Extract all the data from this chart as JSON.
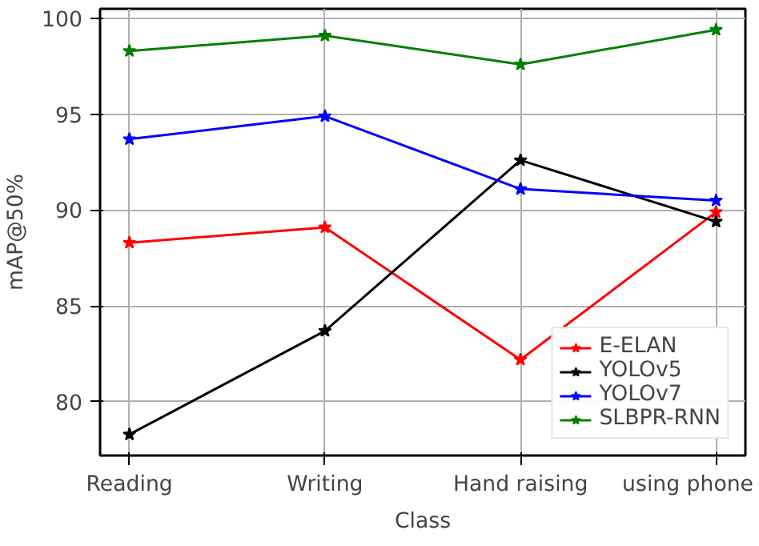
{
  "chart_data": {
    "type": "line",
    "xlabel": "Class",
    "ylabel": "mAP@50%",
    "categories": [
      "Reading",
      "Writing",
      "Hand raising",
      "using phone"
    ],
    "series": [
      {
        "name": "E-ELAN",
        "color": "#ff0000",
        "values": [
          88.3,
          89.1,
          82.2,
          89.9
        ]
      },
      {
        "name": "YOLOv5",
        "color": "#000000",
        "values": [
          78.3,
          83.7,
          92.6,
          89.4
        ]
      },
      {
        "name": "YOLOv7",
        "color": "#0000ff",
        "values": [
          93.7,
          94.9,
          91.1,
          90.5
        ]
      },
      {
        "name": "SLBPR-RNN",
        "color": "#008000",
        "values": [
          98.3,
          99.1,
          97.6,
          99.4
        ]
      }
    ],
    "ylim": [
      77.2,
      100.5
    ],
    "yticks": [
      80,
      85,
      90,
      95,
      100
    ],
    "grid": true,
    "legend": "bottom right",
    "marker": "star",
    "line_style": "solid"
  }
}
